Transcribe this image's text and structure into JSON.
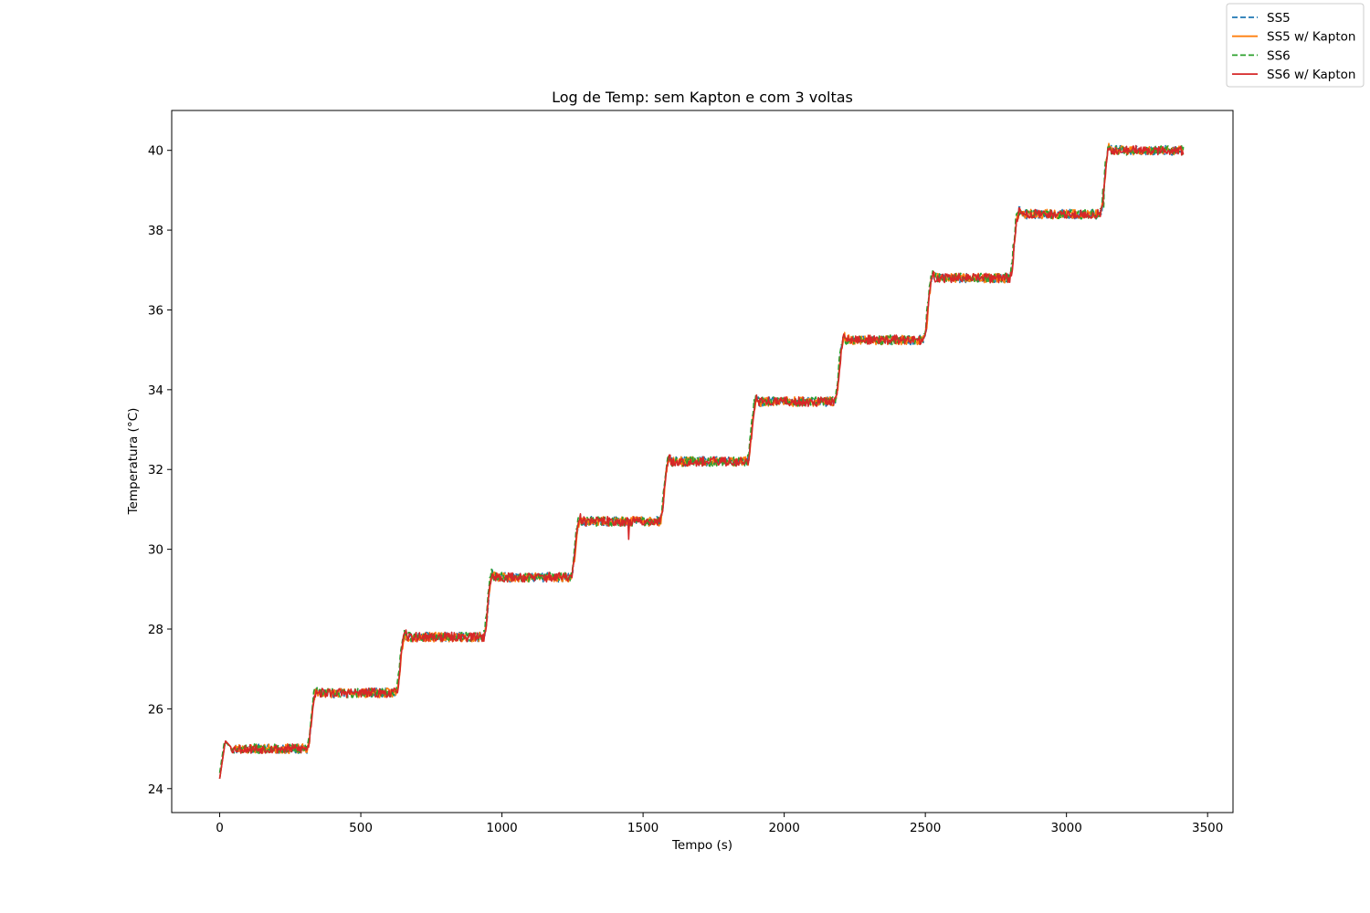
{
  "chart_data": {
    "type": "line",
    "title": "Log de Temp: sem Kapton e com 3 voltas",
    "xlabel": "Tempo (s)",
    "ylabel": "Temperatura (°C)",
    "xlim": [
      -170,
      3590
    ],
    "ylim": [
      23.4,
      41.0
    ],
    "x_ticks": [
      0,
      500,
      1000,
      1500,
      2000,
      2500,
      3000,
      3500
    ],
    "y_ticks": [
      24,
      26,
      28,
      30,
      32,
      34,
      36,
      38,
      40
    ],
    "grid": false,
    "legend_placement": "top-right (outside axes)",
    "series": [
      {
        "name": "SS5",
        "color": "#1f77b4",
        "dashed": true
      },
      {
        "name": "SS5 w/ Kapton",
        "color": "#ff7f0e",
        "dashed": false
      },
      {
        "name": "SS6",
        "color": "#2ca02c",
        "dashed": true
      },
      {
        "name": "SS6 w/ Kapton",
        "color": "#d62728",
        "dashed": false
      }
    ],
    "steps": [
      {
        "start": 0,
        "end": 310,
        "level": 25.0
      },
      {
        "start": 310,
        "end": 625,
        "level": 26.4
      },
      {
        "start": 625,
        "end": 935,
        "level": 27.8
      },
      {
        "start": 935,
        "end": 1245,
        "level": 29.3
      },
      {
        "start": 1245,
        "end": 1560,
        "level": 30.7
      },
      {
        "start": 1560,
        "end": 1870,
        "level": 32.2
      },
      {
        "start": 1870,
        "end": 2180,
        "level": 33.7
      },
      {
        "start": 2180,
        "end": 2495,
        "level": 35.25
      },
      {
        "start": 2495,
        "end": 2800,
        "level": 36.8
      },
      {
        "start": 2800,
        "end": 3120,
        "level": 38.4
      },
      {
        "start": 3120,
        "end": 3415,
        "level": 40.0
      }
    ],
    "initial_value": 24.25,
    "initial_peak": 25.2,
    "end_time": 3415,
    "noise_amplitude": 0.12,
    "dip": {
      "x": 1450,
      "y": 30.25
    }
  }
}
